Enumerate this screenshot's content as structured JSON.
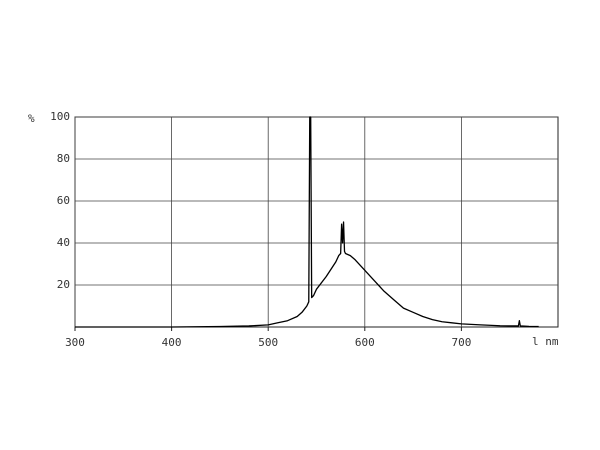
{
  "chart_data": {
    "type": "line",
    "y_label": "%",
    "x_label": "l nm",
    "x": [
      300,
      400,
      450,
      480,
      500,
      510,
      520,
      530,
      535,
      540,
      542,
      543,
      544,
      545,
      547,
      550,
      560,
      570,
      573,
      575,
      576,
      577,
      578,
      579,
      580,
      585,
      590,
      600,
      610,
      620,
      630,
      640,
      650,
      660,
      670,
      680,
      690,
      700,
      720,
      740,
      755,
      759,
      760,
      761,
      770,
      780
    ],
    "values": [
      0,
      0,
      0.2,
      0.5,
      1,
      2,
      3,
      5,
      7,
      10,
      12,
      100,
      100,
      14,
      15,
      18,
      24,
      31,
      34,
      35,
      49,
      40,
      50,
      36,
      35,
      34,
      32,
      27,
      22,
      17,
      13,
      9,
      7,
      5,
      3.5,
      2.5,
      2,
      1.5,
      1,
      0.6,
      0.5,
      0.5,
      3,
      0.5,
      0.3,
      0.2
    ],
    "color": "#000000",
    "xlim": [
      300,
      800
    ],
    "ylim": [
      0,
      100
    ],
    "xticks": [
      300,
      400,
      500,
      600,
      700
    ],
    "yticks": [
      20,
      40,
      60,
      80,
      100
    ],
    "grid": true
  }
}
